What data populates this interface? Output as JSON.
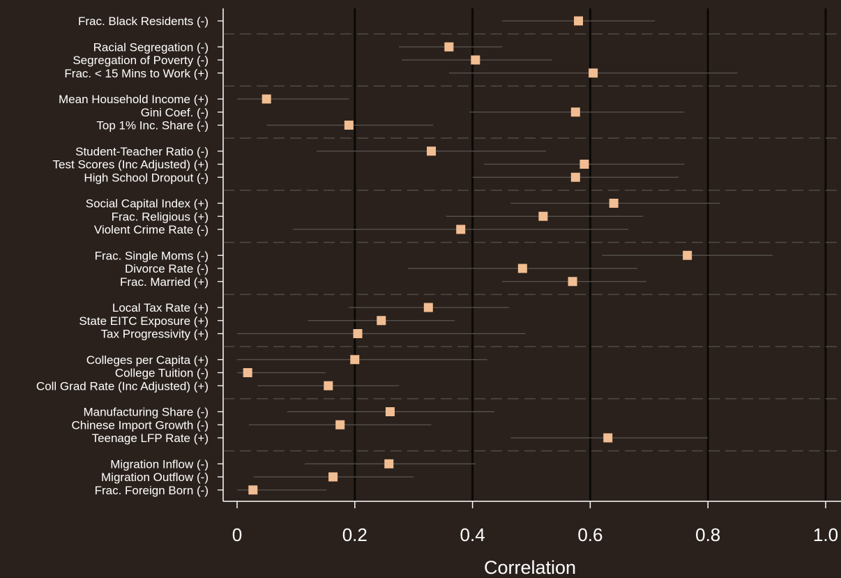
{
  "chart_data": {
    "type": "scatter",
    "xlabel": "Correlation",
    "xlim": [
      0,
      1.0
    ],
    "xticks": [
      {
        "value": 0,
        "label": "0"
      },
      {
        "value": 0.2,
        "label": "0.2"
      },
      {
        "value": 0.4,
        "label": "0.4"
      },
      {
        "value": 0.6,
        "label": "0.6"
      },
      {
        "value": 0.8,
        "label": "0.8"
      },
      {
        "value": 1.0,
        "label": "1.0"
      }
    ],
    "grid": "vertical",
    "colors": {
      "background": "#2a211c",
      "marker": "#f1bd92",
      "ci_line": "#5a5550",
      "grid": "#0a0806",
      "group_separator": "#504a45",
      "text": "#ffffff"
    },
    "groups": [
      [
        {
          "label": "Frac. Black Residents (-)",
          "value": 0.58,
          "ci": [
            0.45,
            0.71
          ]
        }
      ],
      [
        {
          "label": "Racial Segregation (-)",
          "value": 0.36,
          "ci": [
            0.275,
            0.45
          ]
        },
        {
          "label": "Segregation of Poverty (-)",
          "value": 0.405,
          "ci": [
            0.28,
            0.535
          ]
        },
        {
          "label": "Frac. < 15 Mins to Work (+)",
          "value": 0.605,
          "ci": [
            0.36,
            0.85
          ]
        }
      ],
      [
        {
          "label": "Mean Household Income (+)",
          "value": 0.05,
          "ci": [
            0.0,
            0.19
          ]
        },
        {
          "label": "Gini Coef. (-)",
          "value": 0.575,
          "ci": [
            0.395,
            0.76
          ]
        },
        {
          "label": "Top 1% Inc. Share (-)",
          "value": 0.19,
          "ci": [
            0.05,
            0.333
          ]
        }
      ],
      [
        {
          "label": "Student-Teacher Ratio (-)",
          "value": 0.33,
          "ci": [
            0.135,
            0.525
          ]
        },
        {
          "label": "Test Scores (Inc Adjusted) (+)",
          "value": 0.59,
          "ci": [
            0.42,
            0.76
          ]
        },
        {
          "label": "High School Dropout (-)",
          "value": 0.575,
          "ci": [
            0.4,
            0.75
          ]
        }
      ],
      [
        {
          "label": "Social Capital Index (+)",
          "value": 0.64,
          "ci": [
            0.465,
            0.82
          ]
        },
        {
          "label": "Frac. Religious (+)",
          "value": 0.52,
          "ci": [
            0.355,
            0.69
          ]
        },
        {
          "label": "Violent Crime Rate (-)",
          "value": 0.38,
          "ci": [
            0.095,
            0.665
          ]
        }
      ],
      [
        {
          "label": "Frac. Single Moms (-)",
          "value": 0.765,
          "ci": [
            0.62,
            0.91
          ]
        },
        {
          "label": "Divorce Rate (-)",
          "value": 0.485,
          "ci": [
            0.29,
            0.68
          ]
        },
        {
          "label": "Frac. Married (+)",
          "value": 0.57,
          "ci": [
            0.45,
            0.695
          ]
        }
      ],
      [
        {
          "label": "Local Tax Rate (+)",
          "value": 0.325,
          "ci": [
            0.19,
            0.462
          ]
        },
        {
          "label": "State EITC Exposure (+)",
          "value": 0.245,
          "ci": [
            0.12,
            0.37
          ]
        },
        {
          "label": "Tax Progressivity (+)",
          "value": 0.205,
          "ci": [
            0.0,
            0.49
          ]
        }
      ],
      [
        {
          "label": "Colleges per Capita (+)",
          "value": 0.2,
          "ci": [
            0.0,
            0.425
          ]
        },
        {
          "label": "College Tuition (-)",
          "value": 0.018,
          "ci": [
            0.0,
            0.15
          ]
        },
        {
          "label": "Coll Grad Rate (Inc Adjusted) (+)",
          "value": 0.155,
          "ci": [
            0.035,
            0.275
          ]
        }
      ],
      [
        {
          "label": "Manufacturing Share (-)",
          "value": 0.26,
          "ci": [
            0.085,
            0.437
          ]
        },
        {
          "label": "Chinese Import Growth (-)",
          "value": 0.175,
          "ci": [
            0.02,
            0.33
          ]
        },
        {
          "label": "Teenage LFP Rate (+)",
          "value": 0.63,
          "ci": [
            0.465,
            0.8
          ]
        }
      ],
      [
        {
          "label": "Migration Inflow (-)",
          "value": 0.258,
          "ci": [
            0.115,
            0.405
          ]
        },
        {
          "label": "Migration Outflow (-)",
          "value": 0.163,
          "ci": [
            0.028,
            0.3
          ]
        },
        {
          "label": "Frac. Foreign Born (-)",
          "value": 0.027,
          "ci": [
            0.0,
            0.152
          ]
        }
      ]
    ]
  }
}
